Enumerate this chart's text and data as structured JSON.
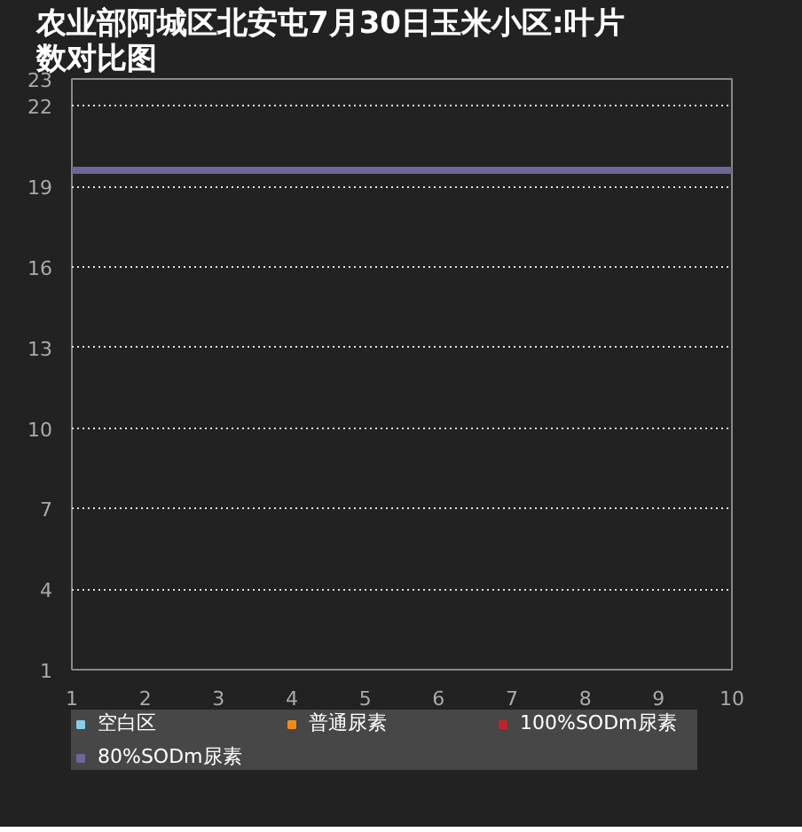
{
  "chart_data": {
    "type": "line",
    "title": "农业部阿城区北安屯7月30日玉米小区:叶片数对比图",
    "categories": [
      "1",
      "2",
      "3",
      "4",
      "5",
      "6",
      "7",
      "8",
      "9",
      "10"
    ],
    "series": [
      {
        "name": "空白区",
        "color": "#87ceeb",
        "values": [
          null,
          null,
          null,
          null,
          null,
          null,
          null,
          null,
          null,
          null
        ]
      },
      {
        "name": "普通尿素",
        "color": "#f28a1a",
        "values": [
          null,
          null,
          null,
          null,
          null,
          null,
          null,
          null,
          null,
          null
        ]
      },
      {
        "name": "100%SODm尿素",
        "color": "#c0222e",
        "values": [
          null,
          null,
          null,
          null,
          null,
          null,
          null,
          null,
          null,
          null
        ]
      },
      {
        "name": "80%SODm尿素",
        "color": "#6e6699",
        "values": [
          19.6,
          19.6,
          19.6,
          19.6,
          19.6,
          19.6,
          19.6,
          19.6,
          19.6,
          19.6
        ]
      }
    ],
    "ylim": [
      1,
      23
    ],
    "yticks": [
      1,
      4,
      7,
      10,
      13,
      16,
      19,
      22,
      23
    ],
    "grid": "y",
    "legend": "bottom",
    "marker": "none",
    "line_style": "solid"
  }
}
